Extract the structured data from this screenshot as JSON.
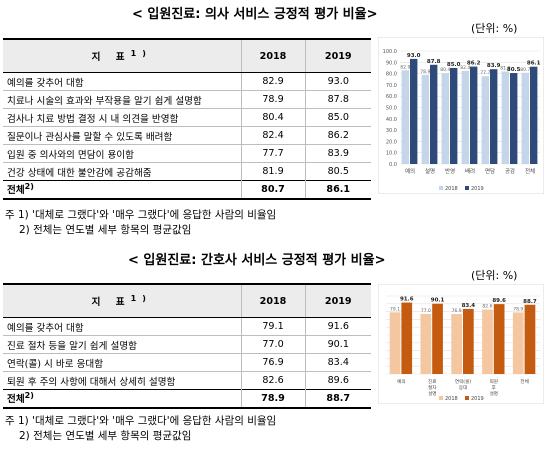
{
  "section1": {
    "title": "< 입원진료: 의사 서비스 긍정적 평가 비율>",
    "unit": "(단위: %)",
    "table": {
      "header": {
        "label": "지 표",
        "sup": "1)",
        "years": [
          "2018",
          "2019"
        ]
      },
      "rows": [
        {
          "label": "예의를 갖추어 대함",
          "v2018": "82.9",
          "v2019": "93.0"
        },
        {
          "label": "치료나 시술의 효과와 부작용을 알기 쉽게 설명함",
          "v2018": "78.9",
          "v2019": "87.8"
        },
        {
          "label": "검사나 치료 방법 결정 시 내 의견을 반영함",
          "v2018": "80.4",
          "v2019": "85.0"
        },
        {
          "label": "질문이나 관심사를 말할 수 있도록 배려함",
          "v2018": "82.4",
          "v2019": "86.2"
        },
        {
          "label": "입원 중 의사와의 면담이 용이함",
          "v2018": "77.7",
          "v2019": "83.9"
        },
        {
          "label": "건강 상태에 대한 불안감에 공감해줌",
          "v2018": "81.9",
          "v2019": "80.5"
        }
      ],
      "total": {
        "label": "전체",
        "sup": "2)",
        "v2018": "80.7",
        "v2019": "86.1"
      }
    },
    "notes": [
      "주 1) '대체로 그랬다'와 '매우 그랬다'에 응답한 사람의 비율임",
      "2) 전체는 연도별 세부 항목의 평균값임"
    ]
  },
  "section2": {
    "title": "< 입원진료: 간호사 서비스 긍정적 평가 비율>",
    "unit": "(단위: %)",
    "table": {
      "header": {
        "label": "지 표",
        "sup": "1)",
        "years": [
          "2018",
          "2019"
        ]
      },
      "rows": [
        {
          "label": "예의를 갖추어 대함",
          "v2018": "79.1",
          "v2019": "91.6"
        },
        {
          "label": "진료 절차 등을 알기 쉽게 설명함",
          "v2018": "77.0",
          "v2019": "90.1"
        },
        {
          "label": "연락(콜) 시 바로 응대함",
          "v2018": "76.9",
          "v2019": "83.4"
        },
        {
          "label": "퇴원 후 주의 사항에 대해서 상세히 설명함",
          "v2018": "82.6",
          "v2019": "89.6"
        }
      ],
      "total": {
        "label": "전체",
        "sup": "2)",
        "v2018": "78.9",
        "v2019": "88.7"
      }
    },
    "notes": [
      "주 1) '대체로 그랬다'와 '매우 그랬다'에 응답한 사람의 비율임",
      "2) 전체는 연도별 세부 항목의 평균값임"
    ]
  },
  "chart_data": [
    {
      "type": "bar",
      "categories": [
        "예의",
        "설명",
        "반영",
        "배려",
        "면담",
        "공감",
        "전체"
      ],
      "series": [
        {
          "name": "2018",
          "values": [
            82.9,
            78.9,
            80.4,
            82.4,
            77.7,
            81.9,
            80.7
          ],
          "color": "#c5d5ea"
        },
        {
          "name": "2019",
          "values": [
            93.0,
            87.8,
            85.0,
            86.2,
            83.9,
            80.5,
            86.1
          ],
          "color": "#2e4a7a"
        }
      ],
      "ylim": [
        0,
        100
      ],
      "yticks": [
        "0.0",
        "10.0",
        "20.0",
        "30.0",
        "40.0",
        "50.0",
        "60.0",
        "70.0",
        "80.0",
        "90.0",
        "100.0"
      ],
      "legend": "bottom",
      "grid": true
    },
    {
      "type": "bar",
      "categories": [
        "예의",
        "진료 절차 설명",
        "연락(콜) 응대",
        "퇴원 후 설명",
        "전체"
      ],
      "series": [
        {
          "name": "2018",
          "values": [
            79.1,
            77.0,
            76.9,
            82.6,
            78.9
          ],
          "color": "#f4c7a1"
        },
        {
          "name": "2019",
          "values": [
            91.6,
            90.1,
            83.4,
            89.6,
            88.7
          ],
          "color": "#c55a11"
        }
      ],
      "ylim": [
        0,
        100
      ],
      "legend": "bottom",
      "grid": true
    }
  ]
}
